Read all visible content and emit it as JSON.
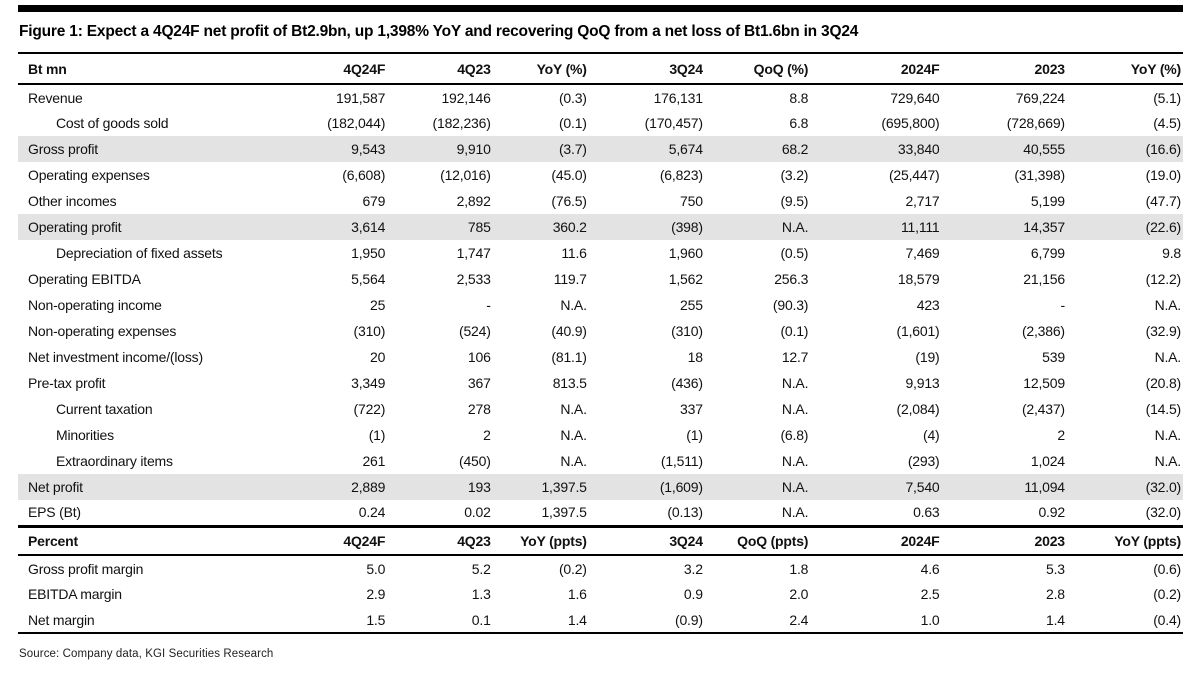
{
  "figure": {
    "title": "Figure 1: Expect a 4Q24F net profit of Bt2.9bn, up 1,398% YoY and recovering QoQ from a net loss of Bt1.6bn in 3Q24",
    "source": "Source: Company data, KGI Securities Research"
  },
  "chart_data": {
    "type": "table",
    "sections": [
      {
        "headers": [
          "Bt mn",
          "4Q24F",
          "4Q23",
          "YoY (%)",
          "3Q24",
          "QoQ (%)",
          "2024F",
          "2023",
          "YoY (%)"
        ],
        "rows": [
          {
            "label": "Revenue",
            "indent": false,
            "shaded": false,
            "values": [
              "191,587",
              "192,146",
              "(0.3)",
              "176,131",
              "8.8",
              "729,640",
              "769,224",
              "(5.1)"
            ]
          },
          {
            "label": "Cost of goods sold",
            "indent": true,
            "shaded": false,
            "values": [
              "(182,044)",
              "(182,236)",
              "(0.1)",
              "(170,457)",
              "6.8",
              "(695,800)",
              "(728,669)",
              "(4.5)"
            ]
          },
          {
            "label": "Gross profit",
            "indent": false,
            "shaded": true,
            "values": [
              "9,543",
              "9,910",
              "(3.7)",
              "5,674",
              "68.2",
              "33,840",
              "40,555",
              "(16.6)"
            ]
          },
          {
            "label": "Operating expenses",
            "indent": false,
            "shaded": false,
            "values": [
              "(6,608)",
              "(12,016)",
              "(45.0)",
              "(6,823)",
              "(3.2)",
              "(25,447)",
              "(31,398)",
              "(19.0)"
            ]
          },
          {
            "label": "Other incomes",
            "indent": false,
            "shaded": false,
            "values": [
              "679",
              "2,892",
              "(76.5)",
              "750",
              "(9.5)",
              "2,717",
              "5,199",
              "(47.7)"
            ]
          },
          {
            "label": "Operating profit",
            "indent": false,
            "shaded": true,
            "values": [
              "3,614",
              "785",
              "360.2",
              "(398)",
              "N.A.",
              "11,111",
              "14,357",
              "(22.6)"
            ]
          },
          {
            "label": "Depreciation of fixed assets",
            "indent": true,
            "shaded": false,
            "values": [
              "1,950",
              "1,747",
              "11.6",
              "1,960",
              "(0.5)",
              "7,469",
              "6,799",
              "9.8"
            ]
          },
          {
            "label": "Operating EBITDA",
            "indent": false,
            "shaded": false,
            "values": [
              "5,564",
              "2,533",
              "119.7",
              "1,562",
              "256.3",
              "18,579",
              "21,156",
              "(12.2)"
            ]
          },
          {
            "label": "Non-operating income",
            "indent": false,
            "shaded": false,
            "values": [
              "25",
              "-",
              "N.A.",
              "255",
              "(90.3)",
              "423",
              "-",
              "N.A."
            ]
          },
          {
            "label": "Non-operating expenses",
            "indent": false,
            "shaded": false,
            "values": [
              "(310)",
              "(524)",
              "(40.9)",
              "(310)",
              "(0.1)",
              "(1,601)",
              "(2,386)",
              "(32.9)"
            ]
          },
          {
            "label": "Net investment income/(loss)",
            "indent": false,
            "shaded": false,
            "values": [
              "20",
              "106",
              "(81.1)",
              "18",
              "12.7",
              "(19)",
              "539",
              "N.A."
            ]
          },
          {
            "label": "Pre-tax profit",
            "indent": false,
            "shaded": false,
            "values": [
              "3,349",
              "367",
              "813.5",
              "(436)",
              "N.A.",
              "9,913",
              "12,509",
              "(20.8)"
            ]
          },
          {
            "label": "Current taxation",
            "indent": true,
            "shaded": false,
            "values": [
              "(722)",
              "278",
              "N.A.",
              "337",
              "N.A.",
              "(2,084)",
              "(2,437)",
              "(14.5)"
            ]
          },
          {
            "label": "Minorities",
            "indent": true,
            "shaded": false,
            "values": [
              "(1)",
              "2",
              "N.A.",
              "(1)",
              "(6.8)",
              "(4)",
              "2",
              "N.A."
            ]
          },
          {
            "label": "Extraordinary items",
            "indent": true,
            "shaded": false,
            "values": [
              "261",
              "(450)",
              "N.A.",
              "(1,511)",
              "N.A.",
              "(293)",
              "1,024",
              "N.A."
            ]
          },
          {
            "label": "Net profit",
            "indent": false,
            "shaded": true,
            "values": [
              "2,889",
              "193",
              "1,397.5",
              "(1,609)",
              "N.A.",
              "7,540",
              "11,094",
              "(32.0)"
            ]
          },
          {
            "label": "EPS (Bt)",
            "indent": false,
            "shaded": false,
            "values": [
              "0.24",
              "0.02",
              "1,397.5",
              "(0.13)",
              "N.A.",
              "0.63",
              "0.92",
              "(32.0)"
            ]
          }
        ]
      },
      {
        "headers": [
          "Percent",
          "4Q24F",
          "4Q23",
          "YoY (ppts)",
          "3Q24",
          "QoQ (ppts)",
          "2024F",
          "2023",
          "YoY (ppts)"
        ],
        "rows": [
          {
            "label": "Gross profit margin",
            "indent": false,
            "shaded": false,
            "values": [
              "5.0",
              "5.2",
              "(0.2)",
              "3.2",
              "1.8",
              "4.6",
              "5.3",
              "(0.6)"
            ]
          },
          {
            "label": "EBITDA margin",
            "indent": false,
            "shaded": false,
            "values": [
              "2.9",
              "1.3",
              "1.6",
              "0.9",
              "2.0",
              "2.5",
              "2.8",
              "(0.2)"
            ]
          },
          {
            "label": "Net margin",
            "indent": false,
            "shaded": false,
            "values": [
              "1.5",
              "0.1",
              "1.4",
              "(0.9)",
              "2.4",
              "1.0",
              "1.4",
              "(0.4)"
            ]
          }
        ]
      }
    ]
  }
}
